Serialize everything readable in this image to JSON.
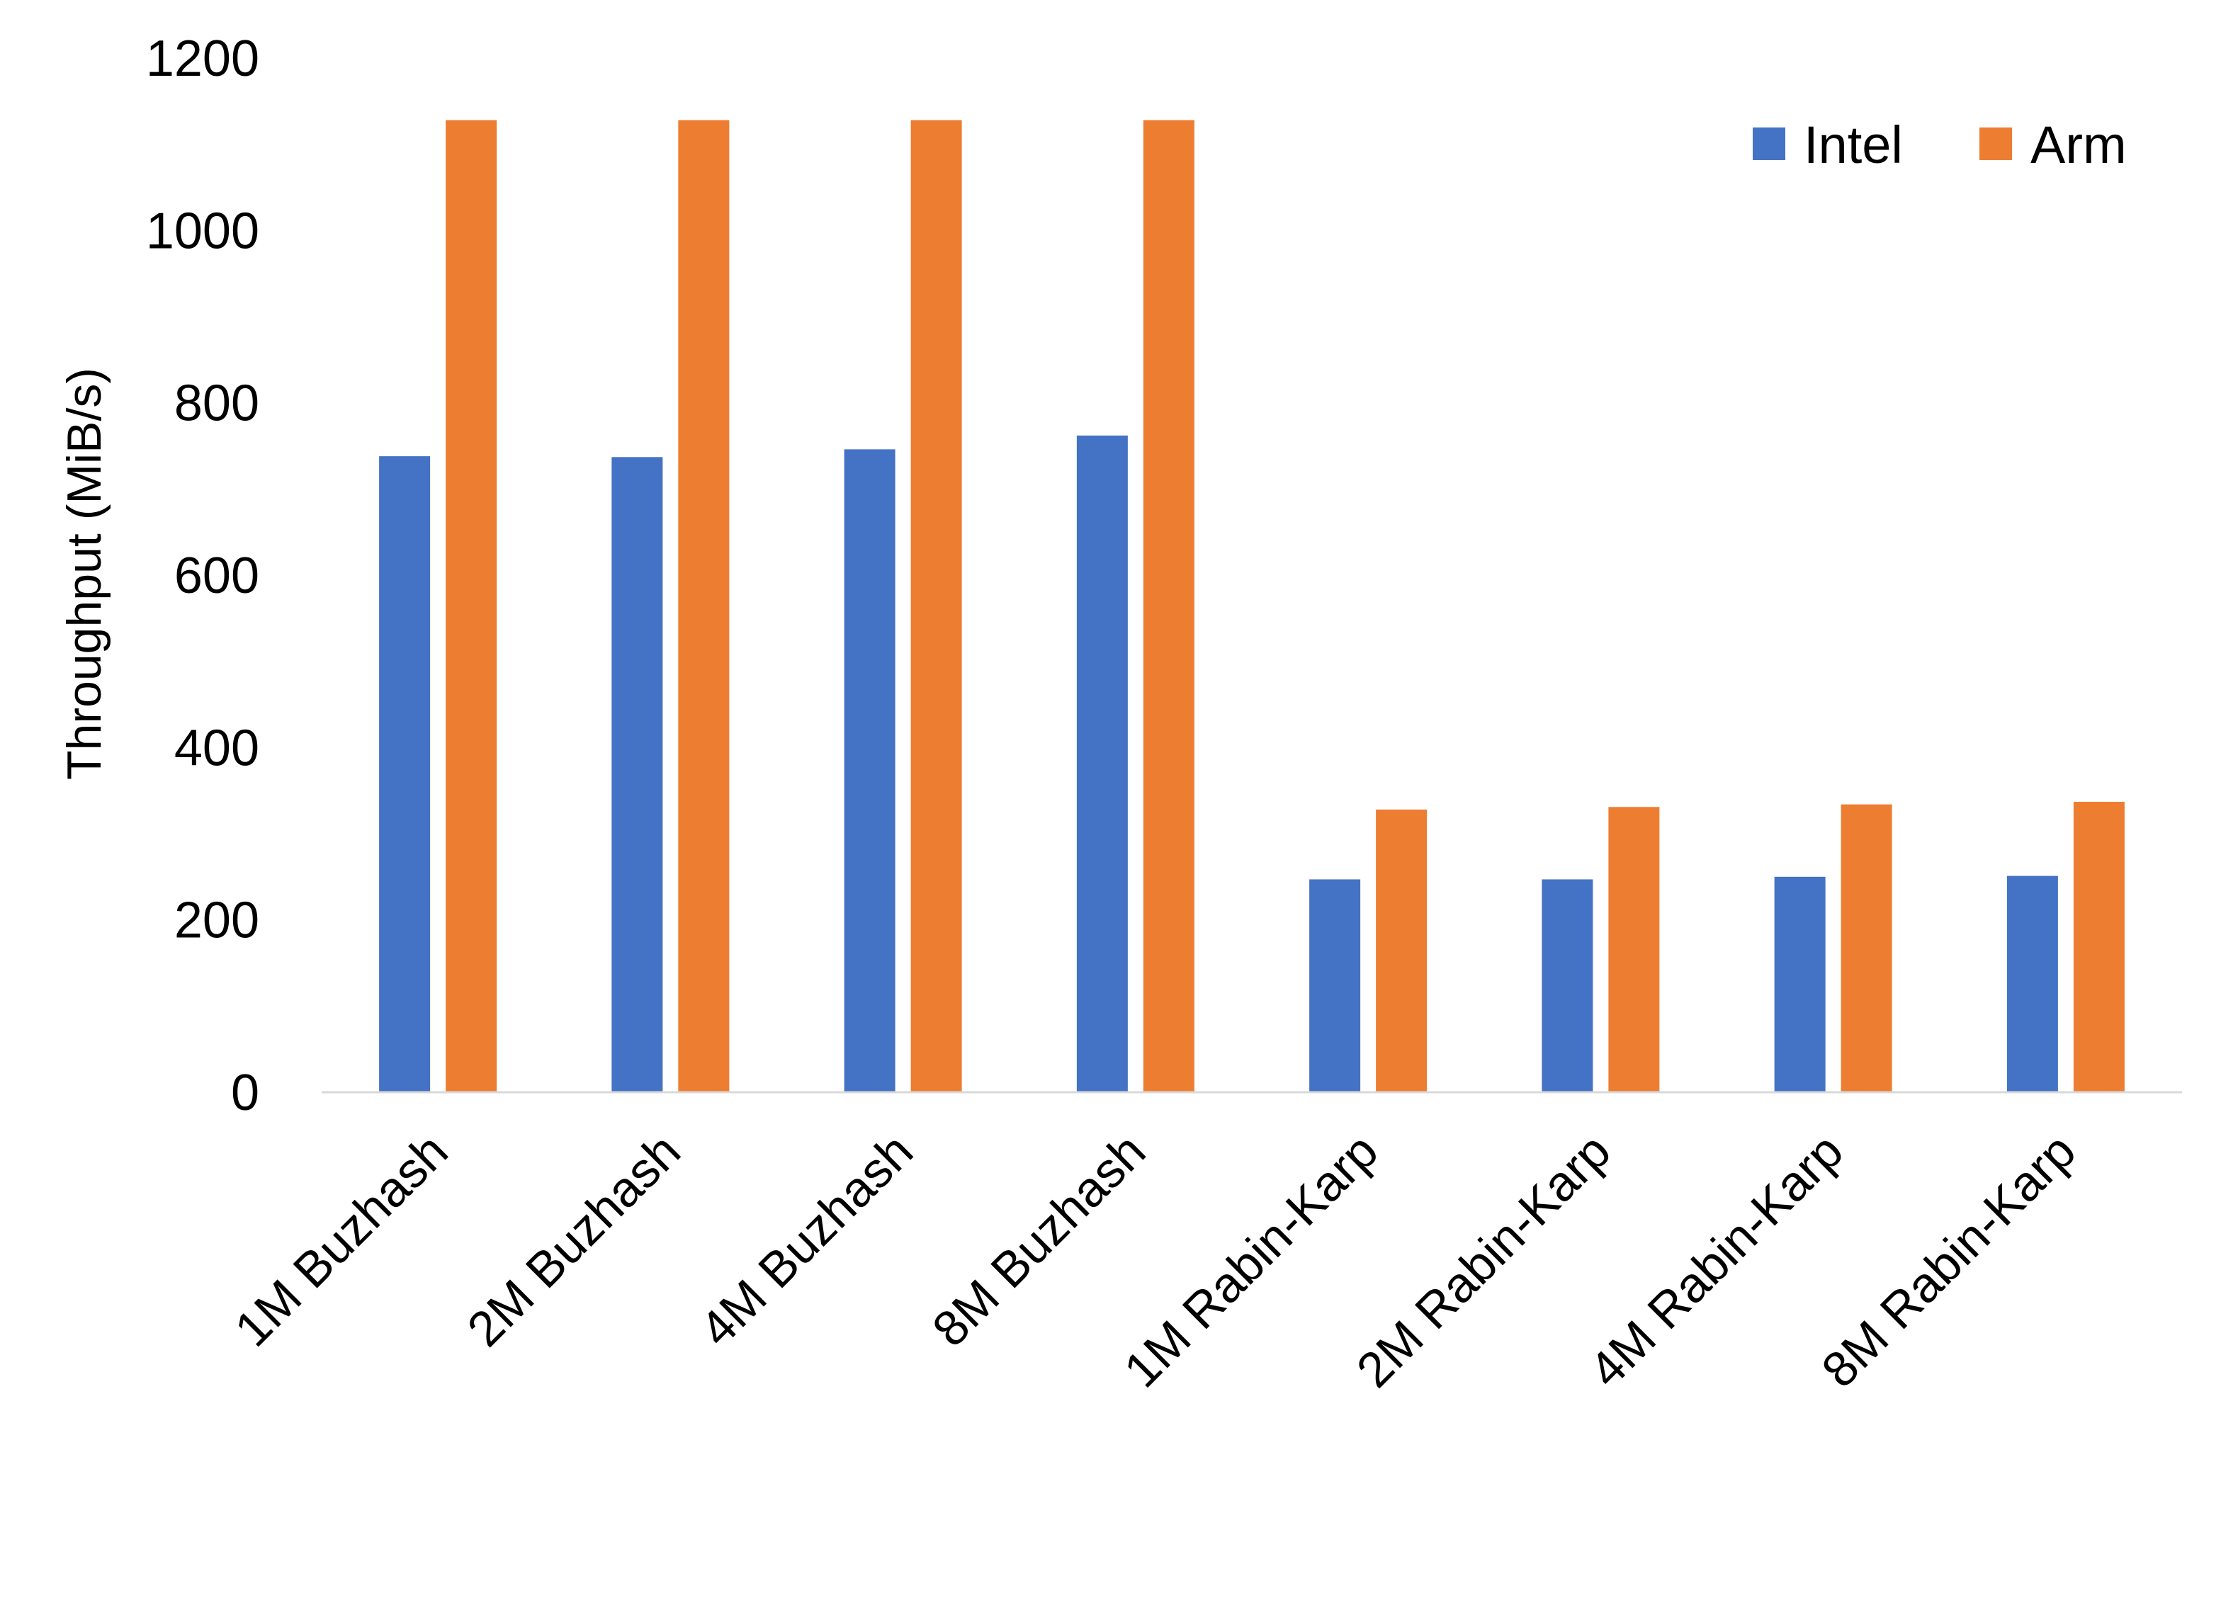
{
  "chart_data": {
    "type": "bar",
    "title": "",
    "xlabel": "",
    "ylabel": "Throughput (MiB/s)",
    "ylim": [
      0,
      1200
    ],
    "yticks": [
      "0",
      "200",
      "400",
      "600",
      "800",
      "1000",
      "1200"
    ],
    "grid": false,
    "legend_position": "top-right",
    "categories": [
      "1M Buzhash",
      "2M Buzhash",
      "4M Buzhash",
      "8M Buzhash",
      "1M Rabin-Karp",
      "2M Rabin-Karp",
      "4M Rabin-Karp",
      "8M Rabin-Karp"
    ],
    "series": [
      {
        "name": "Intel",
        "color": "#4472C4",
        "values": [
          738,
          737,
          746,
          762,
          247,
          247,
          250,
          251
        ]
      },
      {
        "name": "Arm",
        "color": "#ED7D31",
        "values": [
          1128,
          1128,
          1128,
          1128,
          328,
          331,
          334,
          337
        ]
      }
    ]
  }
}
